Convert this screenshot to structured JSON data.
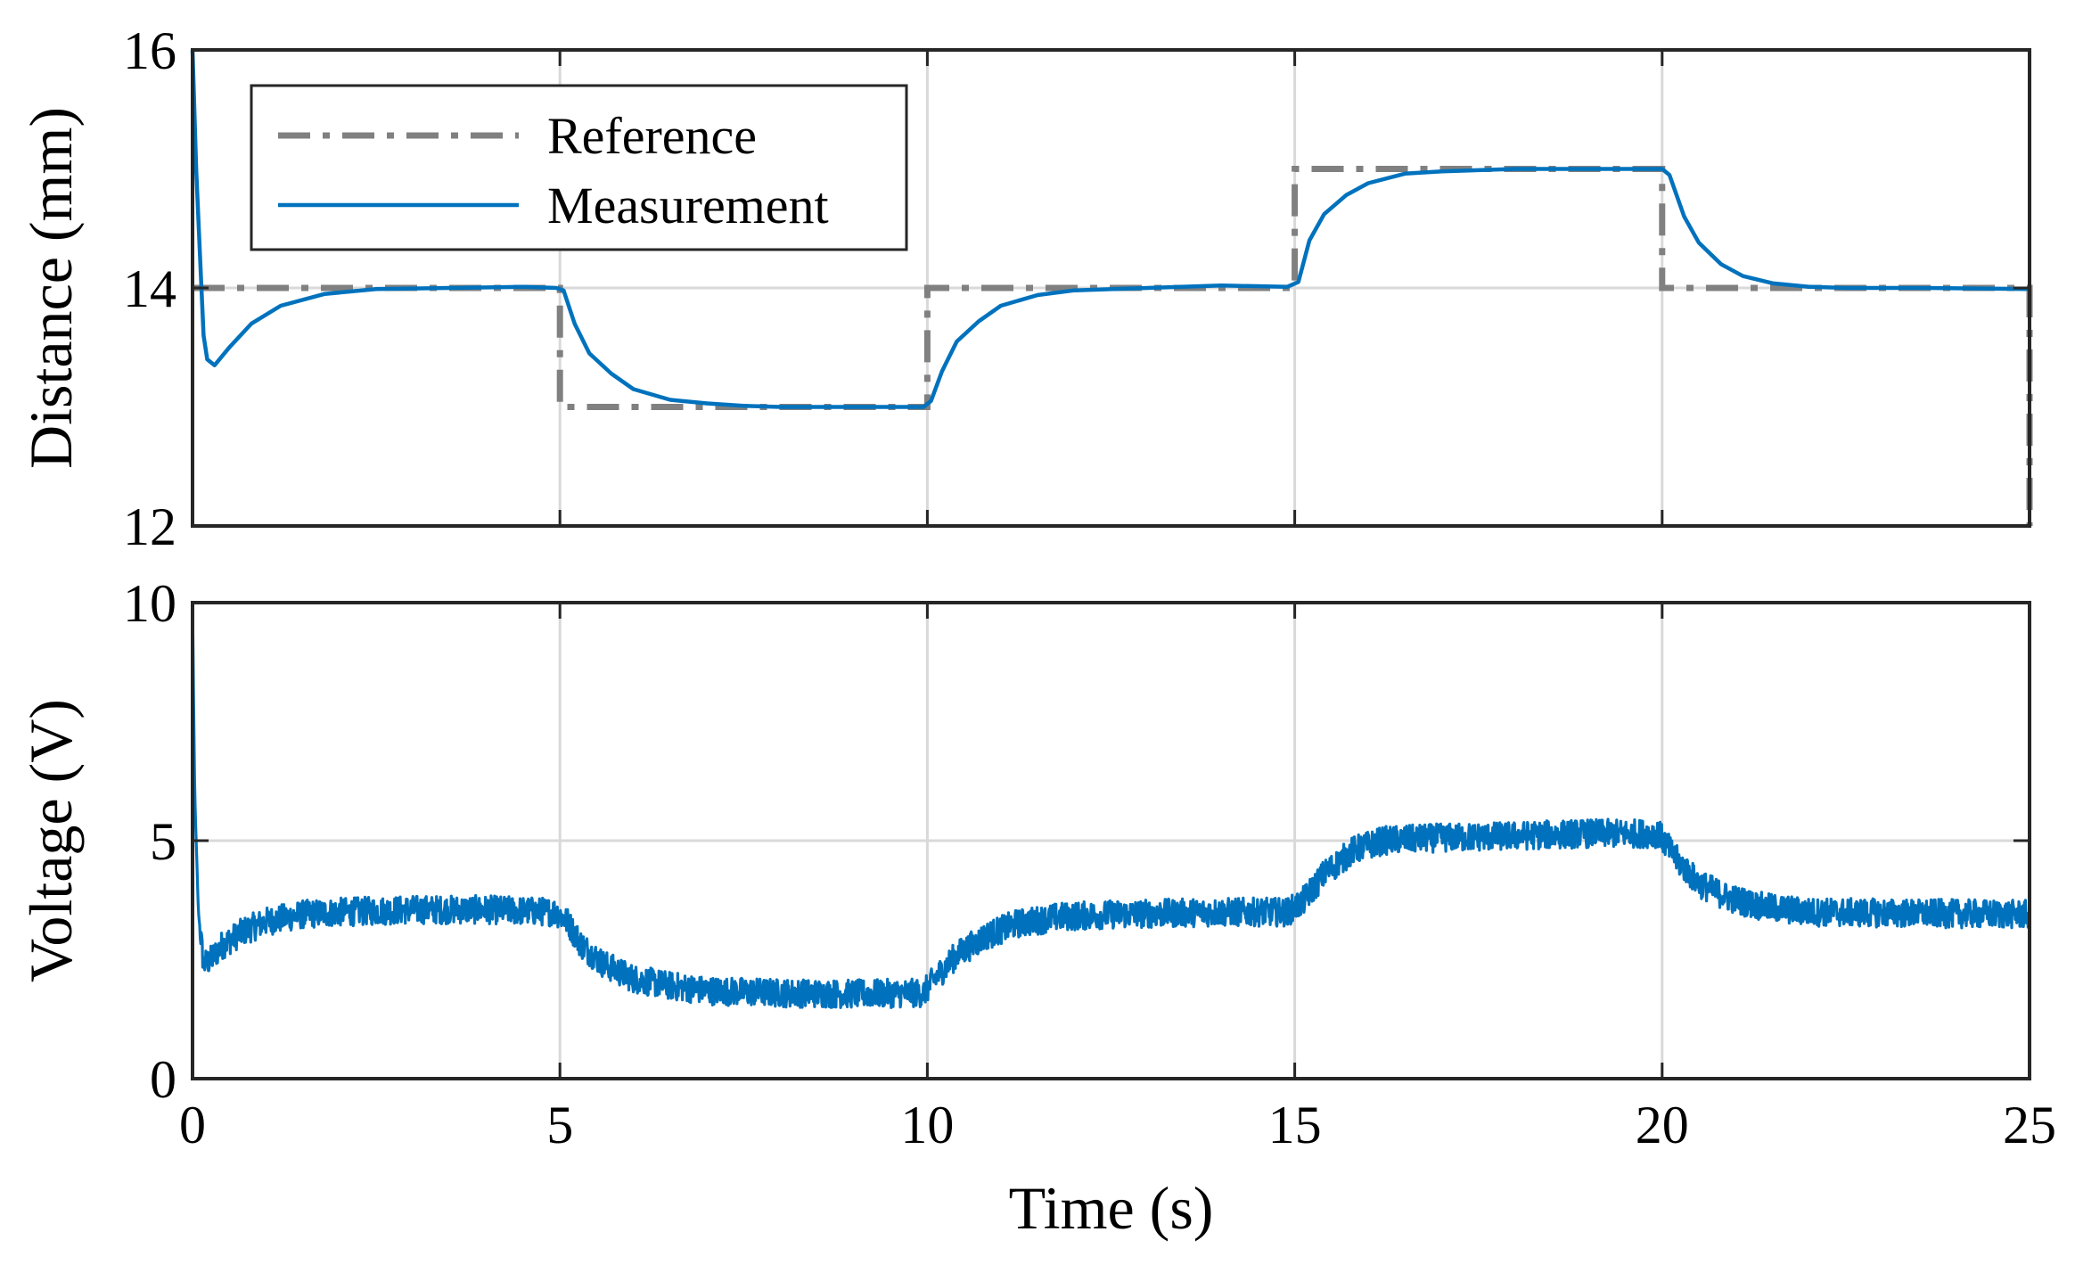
{
  "chart_data": [
    {
      "type": "line",
      "id": "distance",
      "title": "",
      "xlabel": "",
      "ylabel": "Distance (mm)",
      "xlim": [
        0,
        25
      ],
      "ylim": [
        12,
        16
      ],
      "xticks": [
        0,
        5,
        10,
        15,
        20,
        25
      ],
      "yticks": [
        12,
        14,
        16
      ],
      "ytick_labels": [
        "12",
        "14",
        "16"
      ],
      "show_x_tick_labels": false,
      "grid": true,
      "legend": {
        "placement": "top-left",
        "entries": [
          "Reference",
          "Measurement"
        ]
      },
      "series": [
        {
          "name": "Reference",
          "style": "dashdot",
          "color": "#808080",
          "x": [
            0,
            5,
            5,
            10,
            10,
            15,
            15,
            20,
            20,
            25,
            25
          ],
          "y": [
            14,
            14,
            13,
            13,
            14,
            14,
            15,
            15,
            14,
            14,
            12
          ]
        },
        {
          "name": "Measurement",
          "style": "solid",
          "color": "#0072BD",
          "x": [
            0,
            0.05,
            0.1,
            0.15,
            0.2,
            0.3,
            0.5,
            0.8,
            1.2,
            1.8,
            2.5,
            3.5,
            4.5,
            4.95,
            5.05,
            5.2,
            5.4,
            5.7,
            6.0,
            6.5,
            7.0,
            7.5,
            8.0,
            9.0,
            9.95,
            10.05,
            10.2,
            10.4,
            10.7,
            11.0,
            11.5,
            12.0,
            13.0,
            14.0,
            14.9,
            15.05,
            15.2,
            15.4,
            15.7,
            16.0,
            16.5,
            17.0,
            18.0,
            19.0,
            20.0,
            20.1,
            20.3,
            20.5,
            20.8,
            21.1,
            21.5,
            22.0,
            22.5,
            23.5,
            25.0
          ],
          "y": [
            16,
            15.0,
            14.3,
            13.6,
            13.4,
            13.35,
            13.5,
            13.7,
            13.85,
            13.95,
            13.99,
            14.0,
            14.01,
            14.0,
            13.98,
            13.7,
            13.45,
            13.28,
            13.15,
            13.06,
            13.03,
            13.01,
            13.0,
            13.0,
            13.0,
            13.05,
            13.3,
            13.55,
            13.72,
            13.85,
            13.94,
            13.98,
            14.0,
            14.02,
            14.01,
            14.05,
            14.4,
            14.62,
            14.78,
            14.88,
            14.96,
            14.98,
            15.0,
            15.0,
            15.0,
            14.95,
            14.6,
            14.38,
            14.2,
            14.1,
            14.04,
            14.01,
            14.0,
            14.0,
            13.99
          ]
        }
      ]
    },
    {
      "type": "line",
      "id": "voltage",
      "title": "",
      "xlabel": "Time (s)",
      "ylabel": "Voltage (V)",
      "xlim": [
        0,
        25
      ],
      "ylim": [
        0,
        10
      ],
      "xticks": [
        0,
        5,
        10,
        15,
        20,
        25
      ],
      "xtick_labels": [
        "0",
        "5",
        "10",
        "15",
        "20",
        "25"
      ],
      "yticks": [
        0,
        5,
        10
      ],
      "ytick_labels": [
        "0",
        "5",
        "10"
      ],
      "grid": true,
      "series": [
        {
          "name": "Voltage",
          "style": "noisy",
          "color": "#0072BD",
          "noise_amplitude_V": 0.3,
          "x": [
            0,
            0.03,
            0.08,
            0.15,
            0.25,
            0.4,
            0.7,
            1.0,
            1.5,
            2.0,
            3.0,
            4.0,
            4.95,
            5.1,
            5.3,
            5.6,
            6.0,
            6.5,
            7.0,
            8.0,
            9.0,
            9.95,
            10.1,
            10.4,
            10.8,
            11.2,
            11.8,
            12.5,
            14.0,
            14.9,
            15.1,
            15.4,
            15.8,
            16.2,
            16.8,
            18.0,
            19.0,
            19.95,
            20.2,
            20.5,
            20.9,
            21.4,
            22.0,
            23.0,
            25.0
          ],
          "y": [
            10,
            6.0,
            3.5,
            2.4,
            2.5,
            2.8,
            3.1,
            3.3,
            3.45,
            3.5,
            3.55,
            3.55,
            3.5,
            3.3,
            2.8,
            2.4,
            2.1,
            1.95,
            1.85,
            1.8,
            1.78,
            1.8,
            2.1,
            2.6,
            3.0,
            3.25,
            3.4,
            3.45,
            3.5,
            3.5,
            3.7,
            4.3,
            4.8,
            5.0,
            5.05,
            5.1,
            5.15,
            5.15,
            4.6,
            4.1,
            3.8,
            3.6,
            3.5,
            3.48,
            3.45
          ]
        }
      ]
    }
  ]
}
